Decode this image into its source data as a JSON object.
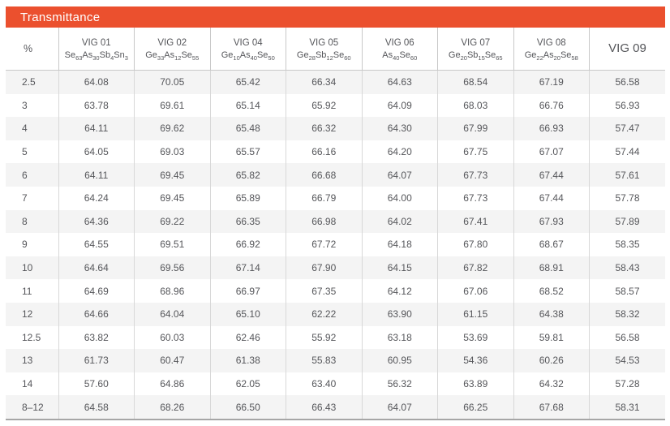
{
  "title": "Transmittance",
  "colors": {
    "accent": "#EB502E",
    "banner_text": "#FFFFFF",
    "stripe": "#F4F4F4",
    "gridline": "#D8D8D8",
    "header_border": "#C8C8C8",
    "table_bottom_border": "#A6A6A6",
    "text": "#55565A"
  },
  "chart_data": {
    "type": "table",
    "title": "Transmittance",
    "unit_header": "%",
    "columns": [
      {
        "label": "VIG 01",
        "formula": [
          [
            "Se",
            "63"
          ],
          [
            "As",
            "30"
          ],
          [
            "Sb",
            "4"
          ],
          [
            "Sn",
            "3"
          ]
        ]
      },
      {
        "label": "VIG 02",
        "formula": [
          [
            "Ge",
            "33"
          ],
          [
            "As",
            "12"
          ],
          [
            "Se",
            "55"
          ]
        ]
      },
      {
        "label": "VIG 04",
        "formula": [
          [
            "Ge",
            "10"
          ],
          [
            "As",
            "40"
          ],
          [
            "Se",
            "50"
          ]
        ]
      },
      {
        "label": "VIG 05",
        "formula": [
          [
            "Ge",
            "28"
          ],
          [
            "Sb",
            "12"
          ],
          [
            "Se",
            "60"
          ]
        ]
      },
      {
        "label": "VIG 06",
        "formula": [
          [
            "As",
            "40"
          ],
          [
            "Se",
            "60"
          ]
        ]
      },
      {
        "label": "VIG 07",
        "formula": [
          [
            "Ge",
            "20"
          ],
          [
            "Sb",
            "15"
          ],
          [
            "Se",
            "65"
          ]
        ]
      },
      {
        "label": "VIG 08",
        "formula": [
          [
            "Ge",
            "22"
          ],
          [
            "As",
            "20"
          ],
          [
            "Se",
            "58"
          ]
        ]
      },
      {
        "label": "VIG 09",
        "formula": []
      }
    ],
    "rows": [
      {
        "percent": "2.5",
        "values": [
          "64.08",
          "70.05",
          "65.42",
          "66.34",
          "64.63",
          "68.54",
          "67.19",
          "56.58"
        ]
      },
      {
        "percent": "3",
        "values": [
          "63.78",
          "69.61",
          "65.14",
          "65.92",
          "64.09",
          "68.03",
          "66.76",
          "56.93"
        ]
      },
      {
        "percent": "4",
        "values": [
          "64.11",
          "69.62",
          "65.48",
          "66.32",
          "64.30",
          "67.99",
          "66.93",
          "57.47"
        ]
      },
      {
        "percent": "5",
        "values": [
          "64.05",
          "69.03",
          "65.57",
          "66.16",
          "64.20",
          "67.75",
          "67.07",
          "57.44"
        ]
      },
      {
        "percent": "6",
        "values": [
          "64.11",
          "69.45",
          "65.82",
          "66.68",
          "64.07",
          "67.73",
          "67.44",
          "57.61"
        ]
      },
      {
        "percent": "7",
        "values": [
          "64.24",
          "69.45",
          "65.89",
          "66.79",
          "64.00",
          "67.73",
          "67.44",
          "57.78"
        ]
      },
      {
        "percent": "8",
        "values": [
          "64.36",
          "69.22",
          "66.35",
          "66.98",
          "64.02",
          "67.41",
          "67.93",
          "57.89"
        ]
      },
      {
        "percent": "9",
        "values": [
          "64.55",
          "69.51",
          "66.92",
          "67.72",
          "64.18",
          "67.80",
          "68.67",
          "58.35"
        ]
      },
      {
        "percent": "10",
        "values": [
          "64.64",
          "69.56",
          "67.14",
          "67.90",
          "64.15",
          "67.82",
          "68.91",
          "58.43"
        ]
      },
      {
        "percent": "11",
        "values": [
          "64.69",
          "68.96",
          "66.97",
          "67.35",
          "64.12",
          "67.06",
          "68.52",
          "58.57"
        ]
      },
      {
        "percent": "12",
        "values": [
          "64.66",
          "64.04",
          "65.10",
          "62.22",
          "63.90",
          "61.15",
          "64.38",
          "58.32"
        ]
      },
      {
        "percent": "12.5",
        "values": [
          "63.82",
          "60.03",
          "62.46",
          "55.92",
          "63.18",
          "53.69",
          "59.81",
          "56.58"
        ]
      },
      {
        "percent": "13",
        "values": [
          "61.73",
          "60.47",
          "61.38",
          "55.83",
          "60.95",
          "54.36",
          "60.26",
          "54.53"
        ]
      },
      {
        "percent": "14",
        "values": [
          "57.60",
          "64.86",
          "62.05",
          "63.40",
          "56.32",
          "63.89",
          "64.32",
          "57.28"
        ]
      },
      {
        "percent": "8–12",
        "values": [
          "64.58",
          "68.26",
          "66.50",
          "66.43",
          "64.07",
          "66.25",
          "67.68",
          "58.31"
        ]
      }
    ]
  }
}
